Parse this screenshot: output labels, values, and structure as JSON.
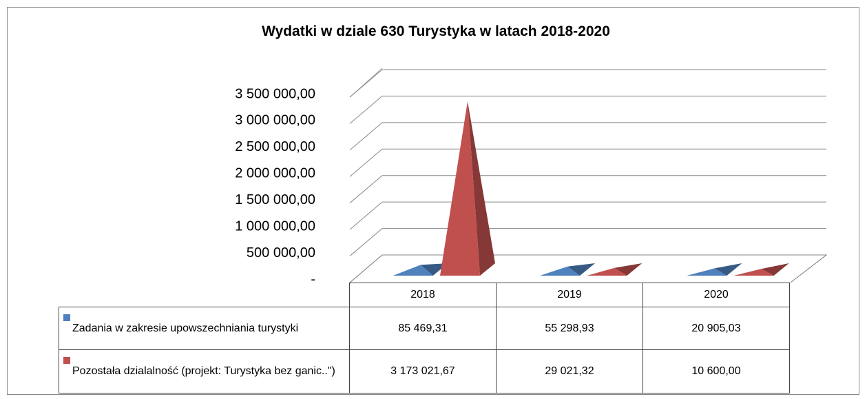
{
  "chart_data": {
    "type": "pyramid",
    "title": "Wydatki w dziale 630 Turystyka w latach 2018-2020",
    "categories": [
      "2018",
      "2019",
      "2020"
    ],
    "series": [
      {
        "name": "Zadania w zakresie upowszechniania turystyki",
        "color": "#4f81bd",
        "values": [
          85469.31,
          55298.93,
          20905.03
        ],
        "value_labels": [
          "85 469,31",
          "55 298,93",
          "20 905,03"
        ]
      },
      {
        "name": "Pozostała dzialalność (projekt: Turystyka bez ganic..\")",
        "color": "#c0504d",
        "values": [
          3173021.67,
          29021.32,
          10600
        ],
        "value_labels": [
          "3 173 021,67",
          "29 021,32",
          "10 600,00"
        ]
      }
    ],
    "ylim": [
      0,
      3500000
    ],
    "yticks": [
      {
        "value": 0,
        "label": "-"
      },
      {
        "value": 500000,
        "label": "500 000,00"
      },
      {
        "value": 1000000,
        "label": "1 000 000,00"
      },
      {
        "value": 1500000,
        "label": "1 500 000,00"
      },
      {
        "value": 2000000,
        "label": "2 000 000,00"
      },
      {
        "value": 2500000,
        "label": "2 500 000,00"
      },
      {
        "value": 3000000,
        "label": "3 000 000,00"
      },
      {
        "value": 3500000,
        "label": "3 500 000,00"
      }
    ],
    "grid": true
  }
}
